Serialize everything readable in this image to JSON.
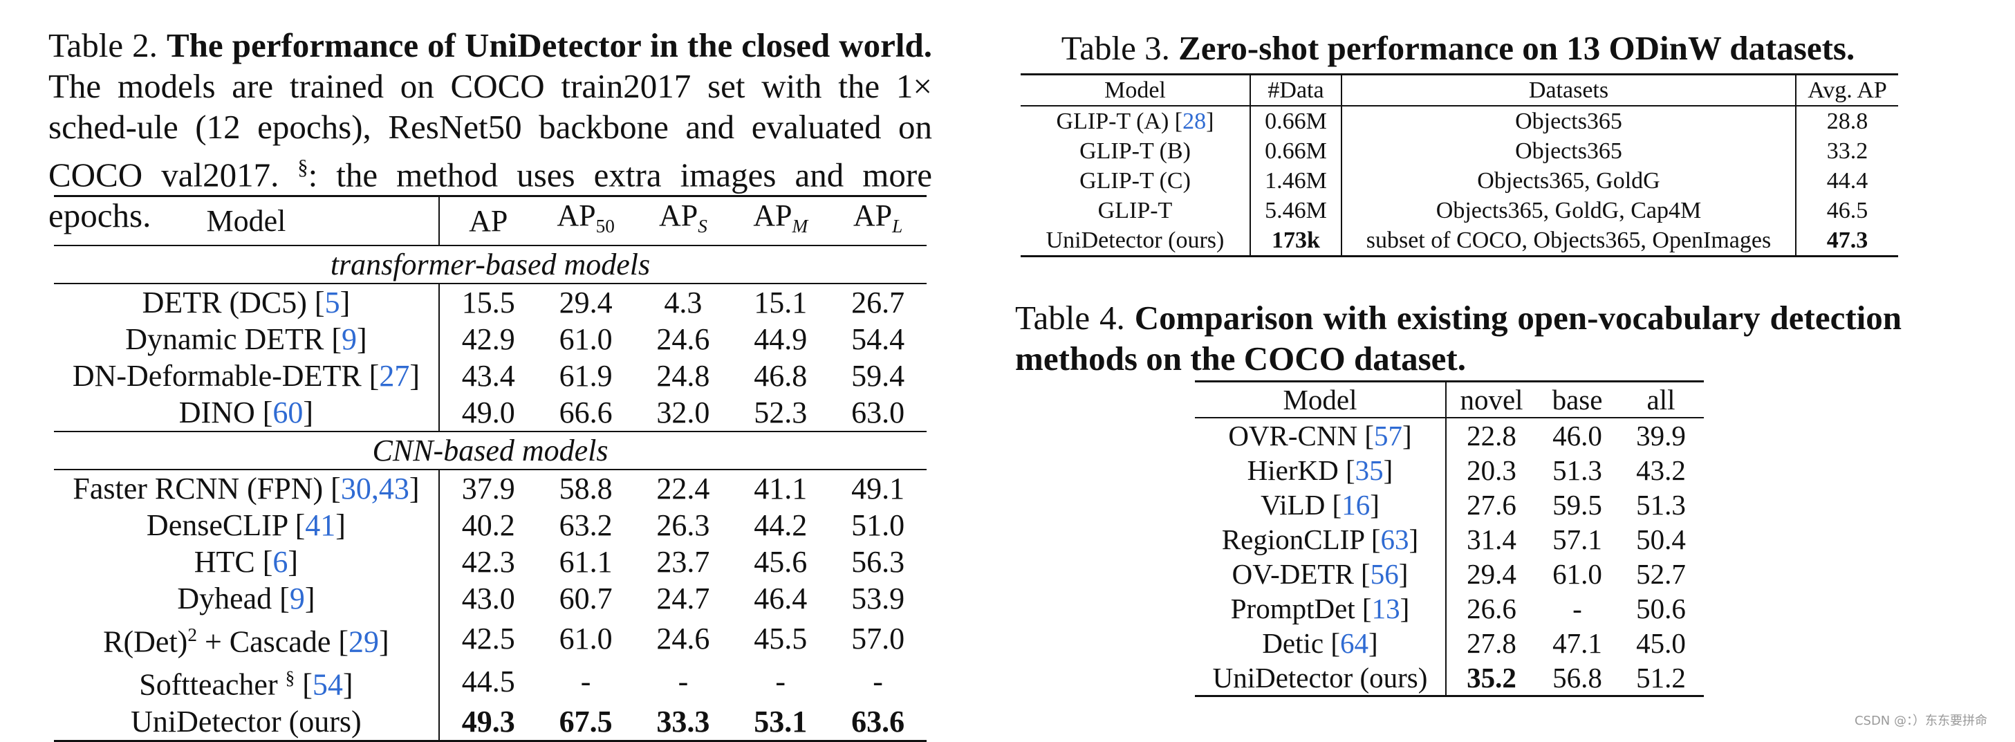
{
  "table2": {
    "label": "Table 2.",
    "title": "The performance of UniDetector in the closed world.",
    "description_1": "The models are trained on COCO train2017 set with the 1× sched-ule (12 epochs), ResNet50 backbone and evaluated on COCO val2017.",
    "description_mark": "§",
    "description_2": ": the method uses extra images and more epochs.",
    "headers": {
      "model": "Model",
      "ap": "AP",
      "ap50_base": "AP",
      "ap50_sub": "50",
      "aps_base": "AP",
      "aps_sub": "S",
      "apm_base": "AP",
      "apm_sub": "M",
      "apl_base": "AP",
      "apl_sub": "L"
    },
    "section_transformer": "transformer-based models",
    "section_cnn": "CNN-based models",
    "transformer_rows": [
      {
        "name": "DETR (DC5) [",
        "cite": "5",
        "close": "]",
        "ap": "15.5",
        "ap50": "29.4",
        "aps": "4.3",
        "apm": "15.1",
        "apl": "26.7"
      },
      {
        "name": "Dynamic DETR [",
        "cite": "9",
        "close": "]",
        "ap": "42.9",
        "ap50": "61.0",
        "aps": "24.6",
        "apm": "44.9",
        "apl": "54.4"
      },
      {
        "name": "DN-Deformable-DETR [",
        "cite": "27",
        "close": "]",
        "ap": "43.4",
        "ap50": "61.9",
        "aps": "24.8",
        "apm": "46.8",
        "apl": "59.4"
      },
      {
        "name": "DINO [",
        "cite": "60",
        "close": "]",
        "ap": "49.0",
        "ap50": "66.6",
        "aps": "32.0",
        "apm": "52.3",
        "apl": "63.0"
      }
    ],
    "cnn_rows": [
      {
        "name": "Faster RCNN (FPN) [",
        "cite": "30,43",
        "close": "]",
        "ap": "37.9",
        "ap50": "58.8",
        "aps": "22.4",
        "apm": "41.1",
        "apl": "49.1"
      },
      {
        "name": "DenseCLIP [",
        "cite": "41",
        "close": "]",
        "ap": "40.2",
        "ap50": "63.2",
        "aps": "26.3",
        "apm": "44.2",
        "apl": "51.0"
      },
      {
        "name": "HTC [",
        "cite": "6",
        "close": "]",
        "ap": "42.3",
        "ap50": "61.1",
        "aps": "23.7",
        "apm": "45.6",
        "apl": "56.3"
      },
      {
        "name": "Dyhead [",
        "cite": "9",
        "close": "]",
        "ap": "43.0",
        "ap50": "60.7",
        "aps": "24.7",
        "apm": "46.4",
        "apl": "53.9"
      },
      {
        "name_pre": "R(Det)",
        "name_sup": "2",
        "name": " + Cascade [",
        "cite": "29",
        "close": "]",
        "ap": "42.5",
        "ap50": "61.0",
        "aps": "24.6",
        "apm": "45.5",
        "apl": "57.0"
      },
      {
        "name": "Softteacher ",
        "name_sup": "§",
        "name2": " [",
        "cite": "54",
        "close": "]",
        "ap": "44.5",
        "ap50": "-",
        "aps": "-",
        "apm": "-",
        "apl": "-"
      },
      {
        "name": "UniDetector (ours)",
        "ap": "49.3",
        "ap50": "67.5",
        "aps": "33.3",
        "apm": "53.1",
        "apl": "63.6"
      }
    ]
  },
  "table3": {
    "label": "Table 3.",
    "title": "Zero-shot performance on 13 ODinW datasets.",
    "headers": [
      "Model",
      "#Data",
      "Datasets",
      "Avg. AP"
    ],
    "rows": [
      {
        "model": "GLIP-T (A) [",
        "cite": "28",
        "close": "]",
        "data": "0.66M",
        "datasets": "Objects365",
        "ap": "28.8"
      },
      {
        "model": "GLIP-T (B)",
        "data": "0.66M",
        "datasets": "Objects365",
        "ap": "33.2"
      },
      {
        "model": "GLIP-T (C)",
        "data": "1.46M",
        "datasets": "Objects365, GoldG",
        "ap": "44.4"
      },
      {
        "model": "GLIP-T",
        "data": "5.46M",
        "datasets": "Objects365, GoldG, Cap4M",
        "ap": "46.5"
      },
      {
        "model": "UniDetector (ours)",
        "data": "173k",
        "datasets": "subset of COCO, Objects365, OpenImages",
        "ap": "47.3"
      }
    ]
  },
  "table4": {
    "label": "Table 4.",
    "title": "Comparison with existing open-vocabulary detection methods on the COCO dataset.",
    "headers": [
      "Model",
      "novel",
      "base",
      "all"
    ],
    "rows": [
      {
        "model": "OVR-CNN [",
        "cite": "57",
        "close": "]",
        "novel": "22.8",
        "base": "46.0",
        "all": "39.9"
      },
      {
        "model": "HierKD [",
        "cite": "35",
        "close": "]",
        "novel": "20.3",
        "base": "51.3",
        "all": "43.2"
      },
      {
        "model": "ViLD [",
        "cite": "16",
        "close": "]",
        "novel": "27.6",
        "base": "59.5",
        "all": "51.3"
      },
      {
        "model": "RegionCLIP [",
        "cite": "63",
        "close": "]",
        "novel": "31.4",
        "base": "57.1",
        "all": "50.4"
      },
      {
        "model": "OV-DETR [",
        "cite": "56",
        "close": "]",
        "novel": "29.4",
        "base": "61.0",
        "all": "52.7"
      },
      {
        "model": "PromptDet [",
        "cite": "13",
        "close": "]",
        "novel": "26.6",
        "base": "-",
        "all": "50.6"
      },
      {
        "model": "Detic [",
        "cite": "64",
        "close": "]",
        "novel": "27.8",
        "base": "47.1",
        "all": "45.0"
      },
      {
        "model": "UniDetector (ours)",
        "novel": "35.2",
        "base": "56.8",
        "all": "51.2"
      }
    ]
  },
  "watermark": "CSDN @：）东东要拼命",
  "colors": {
    "citation": "#2f6bd3",
    "text": "#111111"
  }
}
